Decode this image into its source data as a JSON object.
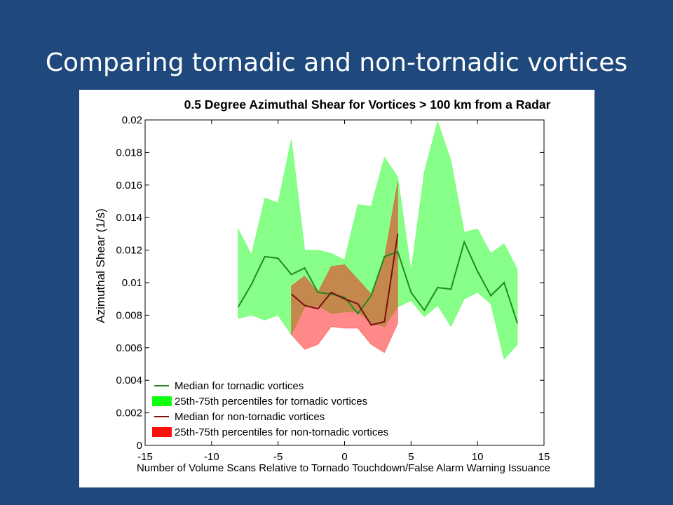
{
  "slide": {
    "title": "Comparing tornadic and non-tornadic vortices"
  },
  "chart_data": {
    "type": "area",
    "title": "0.5 Degree Azimuthal Shear for Vortices > 100 km from a Radar",
    "xlabel": "Number of Volume Scans Relative to Tornado Touchdown/False Alarm Warning Issuance",
    "ylabel": "Azimuthal Shear (1/s)",
    "xlim": [
      -15,
      15
    ],
    "ylim": [
      0,
      0.02
    ],
    "xticks": [
      "-15",
      "-10",
      "-5",
      "0",
      "5",
      "10",
      "15"
    ],
    "yticks": [
      "0",
      "0.002",
      "0.004",
      "0.006",
      "0.008",
      "0.01",
      "0.012",
      "0.014",
      "0.016",
      "0.018",
      "0.02"
    ],
    "grid": false,
    "legend_position": "bottom-left",
    "legend": [
      {
        "label": "Median for tornadic vortices",
        "kind": "line",
        "color": "#1f8a1f"
      },
      {
        "label": "25th-75th percentiles for tornadic vortices",
        "kind": "patch",
        "color": "#11ff11"
      },
      {
        "label": "Median for non-tornadic vortices",
        "kind": "line",
        "color": "#7a1010"
      },
      {
        "label": "25th-75th percentiles for non-tornadic vortices",
        "kind": "patch",
        "color": "#ff1111"
      }
    ],
    "series": [
      {
        "kind": "band",
        "color": "#11ff11",
        "opacity": 0.5,
        "x": [
          -8,
          -7,
          -6,
          -5,
          -4,
          -3,
          -2,
          -1,
          0,
          1,
          2,
          3,
          4,
          5,
          6,
          7,
          8,
          9,
          10,
          11,
          12,
          13
        ],
        "lower": [
          0.0078,
          0.008,
          0.0077,
          0.008,
          0.0068,
          0.0085,
          0.0086,
          0.0081,
          0.0082,
          0.0082,
          0.0075,
          0.0073,
          0.0085,
          0.0089,
          0.0079,
          0.0086,
          0.0073,
          0.009,
          0.0094,
          0.0087,
          0.0053,
          0.0062
        ],
        "upper": [
          0.0133,
          0.0117,
          0.0152,
          0.0149,
          0.0188,
          0.012,
          0.012,
          0.0118,
          0.0114,
          0.0148,
          0.0147,
          0.0177,
          0.0165,
          0.0107,
          0.0168,
          0.0199,
          0.0175,
          0.0131,
          0.0133,
          0.0118,
          0.0124,
          0.0108
        ]
      },
      {
        "kind": "band",
        "color": "#ff1111",
        "opacity": 0.5,
        "x": [
          -4,
          -3,
          -2,
          -1,
          0,
          1,
          2,
          3,
          4
        ],
        "lower": [
          0.0068,
          0.0059,
          0.0062,
          0.0073,
          0.0072,
          0.0072,
          0.0062,
          0.0057,
          0.0075
        ],
        "upper": [
          0.0098,
          0.0104,
          0.0094,
          0.011,
          0.0111,
          0.0102,
          0.0093,
          0.0115,
          0.0162
        ]
      },
      {
        "kind": "line",
        "name": "Median for tornadic vortices",
        "color": "#1f8a1f",
        "x": [
          -8,
          -7,
          -6,
          -5,
          -4,
          -3,
          -2,
          -1,
          0,
          1,
          2,
          3,
          4,
          5,
          6,
          7,
          8,
          9,
          10,
          11,
          12,
          13
        ],
        "y": [
          0.0085,
          0.0099,
          0.0116,
          0.0115,
          0.0105,
          0.0109,
          0.0094,
          0.0093,
          0.0091,
          0.0081,
          0.0092,
          0.0116,
          0.0119,
          0.0094,
          0.0083,
          0.0097,
          0.0096,
          0.0125,
          0.0107,
          0.0092,
          0.01,
          0.0075
        ]
      },
      {
        "kind": "line",
        "name": "Median for non-tornadic vortices",
        "color": "#7a1010",
        "x": [
          -4,
          -3,
          -2,
          -1,
          0,
          1,
          2,
          3,
          4
        ],
        "y": [
          0.0093,
          0.0086,
          0.0084,
          0.0094,
          0.009,
          0.0087,
          0.0074,
          0.0076,
          0.013
        ]
      }
    ]
  }
}
